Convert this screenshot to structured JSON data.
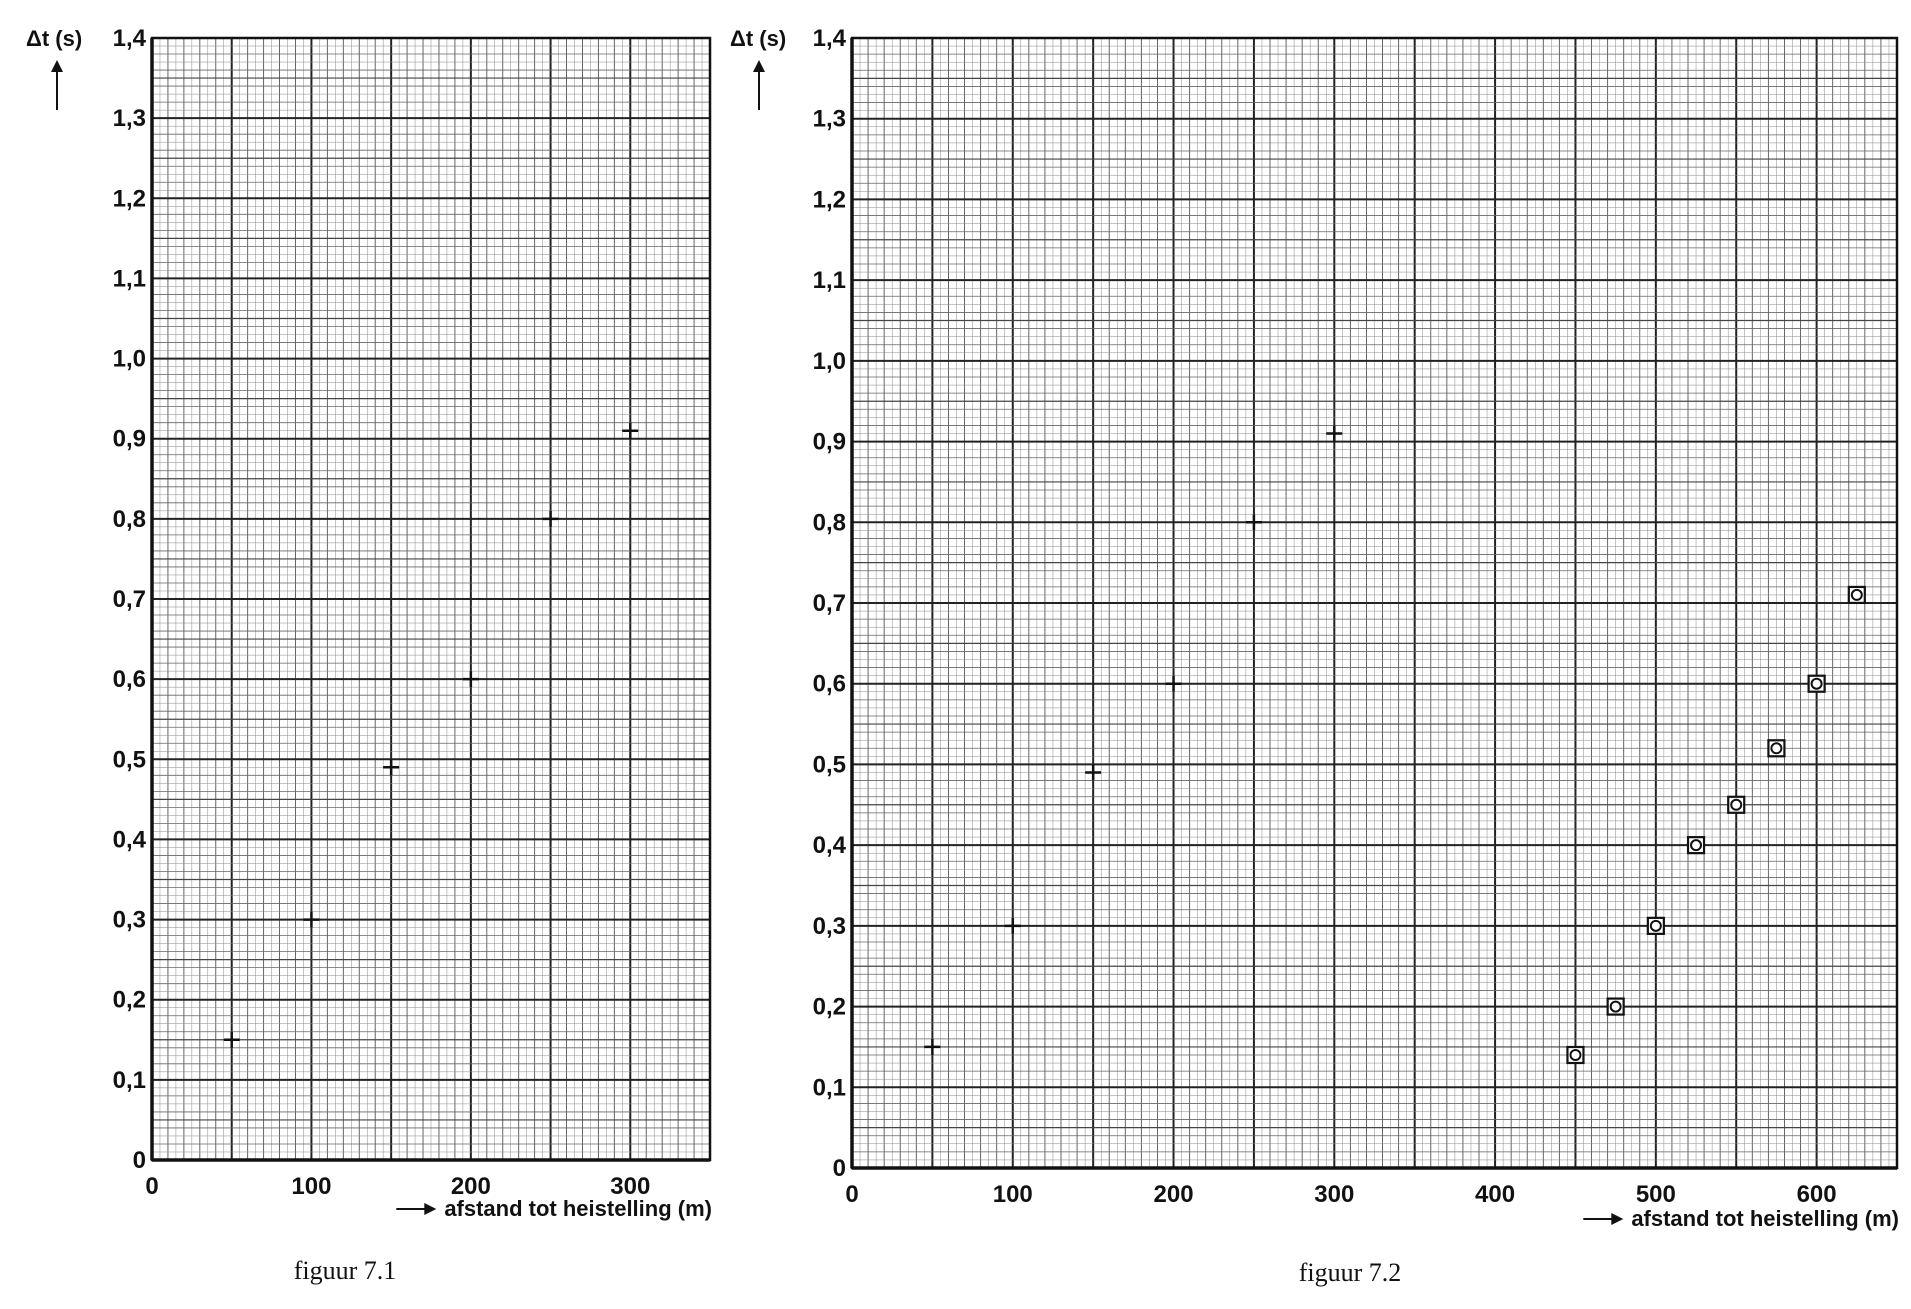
{
  "chart_data": [
    {
      "type": "scatter",
      "caption": "figuur 7.1",
      "title": "",
      "ylabel": "Δt (s)",
      "xlabel": "afstand tot heistelling (m)",
      "xlim": [
        0,
        350
      ],
      "ylim": [
        0,
        1.4
      ],
      "x_ticks": [
        0,
        100,
        200,
        300
      ],
      "x_tick_labels": [
        "0",
        "100",
        "200",
        "300"
      ],
      "y_ticks": [
        0,
        0.1,
        0.2,
        0.3,
        0.4,
        0.5,
        0.6,
        0.7,
        0.8,
        0.9,
        1.0,
        1.1,
        1.2,
        1.3,
        1.4
      ],
      "y_tick_labels": [
        "0",
        "0,1",
        "0,2",
        "0,3",
        "0,4",
        "0,5",
        "0,6",
        "0,7",
        "0,8",
        "0,9",
        "1,0",
        "1,1",
        "1,2",
        "1,3",
        "1,4"
      ],
      "grid": true,
      "series": [
        {
          "marker": "plus",
          "color": "#111111",
          "x": [
            50,
            100,
            150,
            200,
            250,
            300
          ],
          "y": [
            0.15,
            0.3,
            0.49,
            0.6,
            0.8,
            0.91
          ]
        }
      ]
    },
    {
      "type": "scatter",
      "caption": "figuur 7.2",
      "title": "",
      "ylabel": "Δt (s)",
      "xlabel": "afstand tot heistelling (m)",
      "xlim": [
        0,
        650
      ],
      "ylim": [
        0,
        1.4
      ],
      "x_ticks": [
        0,
        100,
        200,
        300,
        400,
        500,
        600
      ],
      "x_tick_labels": [
        "0",
        "100",
        "200",
        "300",
        "400",
        "500",
        "600"
      ],
      "y_ticks": [
        0,
        0.1,
        0.2,
        0.3,
        0.4,
        0.5,
        0.6,
        0.7,
        0.8,
        0.9,
        1.0,
        1.1,
        1.2,
        1.3,
        1.4
      ],
      "y_tick_labels": [
        "0",
        "0,1",
        "0,2",
        "0,3",
        "0,4",
        "0,5",
        "0,6",
        "0,7",
        "0,8",
        "0,9",
        "1,0",
        "1,1",
        "1,2",
        "1,3",
        "1,4"
      ],
      "grid": true,
      "series": [
        {
          "marker": "plus",
          "color": "#111111",
          "x": [
            50,
            100,
            150,
            200,
            250,
            300
          ],
          "y": [
            0.15,
            0.3,
            0.49,
            0.6,
            0.8,
            0.91
          ]
        },
        {
          "marker": "square-circle",
          "color": "#111111",
          "x": [
            450,
            475,
            500,
            525,
            550,
            575,
            600,
            625
          ],
          "y": [
            0.14,
            0.2,
            0.3,
            0.4,
            0.45,
            0.52,
            0.6,
            0.71
          ]
        }
      ]
    }
  ]
}
